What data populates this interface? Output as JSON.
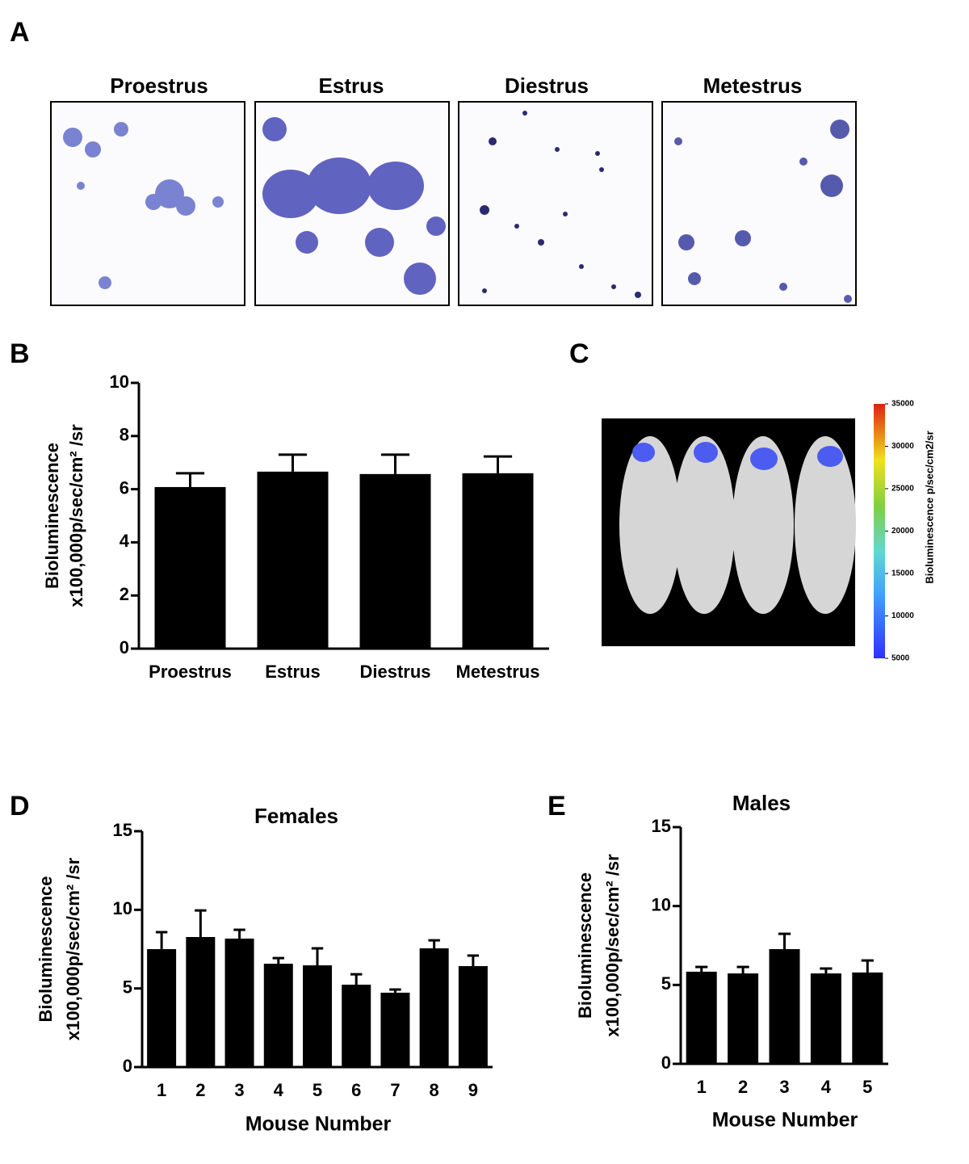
{
  "panels": [
    "A",
    "B",
    "C",
    "D",
    "E"
  ],
  "micrographs": {
    "labels": [
      "Proestrus",
      "Estrus",
      "Diestrus",
      "Metestrus"
    ]
  },
  "colorbar": {
    "label": "Bioluminescence p/sec/cm2/sr",
    "lim": [
      5000,
      35000
    ],
    "ticks": [
      5000,
      10000,
      15000,
      20000,
      25000,
      30000,
      35000
    ]
  },
  "chart_data": [
    {
      "type": "bar",
      "ylabel": [
        "Bioluminescence",
        "x100,000p/sec/cm² /sr"
      ],
      "categories": [
        "Proestrus",
        "Estrus",
        "Diestrus",
        "Metestrus"
      ],
      "values": [
        6.08,
        6.66,
        6.57,
        6.6
      ],
      "errors": [
        0.52,
        0.64,
        0.73,
        0.63
      ],
      "color": "#000000",
      "ylim": [
        0,
        10
      ],
      "yticks": [
        0,
        2,
        4,
        6,
        8,
        10
      ]
    },
    {
      "type": "bar",
      "title": "Females",
      "xlabel": "Mouse Number",
      "ylabel": [
        "Bioluminescence",
        "x100,000p/sec/cm² /sr"
      ],
      "categories": [
        "1",
        "2",
        "3",
        "4",
        "5",
        "6",
        "7",
        "8",
        "9"
      ],
      "values": [
        7.5,
        8.27,
        8.17,
        6.57,
        6.47,
        5.24,
        4.73,
        7.55,
        6.42
      ],
      "errors": [
        1.08,
        1.69,
        0.56,
        0.36,
        1.08,
        0.66,
        0.2,
        0.51,
        0.67
      ],
      "color": "#000000",
      "ylim": [
        0,
        15
      ],
      "yticks": [
        0,
        5,
        10,
        15
      ]
    },
    {
      "type": "bar",
      "title": "Males",
      "xlabel": "Mouse Number",
      "ylabel": [
        "Bioluminescence",
        "x100,000p/sec/cm² /sr"
      ],
      "categories": [
        "1",
        "2",
        "3",
        "4",
        "5"
      ],
      "values": [
        5.84,
        5.73,
        7.27,
        5.73,
        5.79
      ],
      "errors": [
        0.3,
        0.41,
        0.97,
        0.31,
        0.76
      ],
      "color": "#000000",
      "ylim": [
        0,
        15
      ],
      "yticks": [
        0,
        5,
        10,
        15
      ]
    }
  ]
}
